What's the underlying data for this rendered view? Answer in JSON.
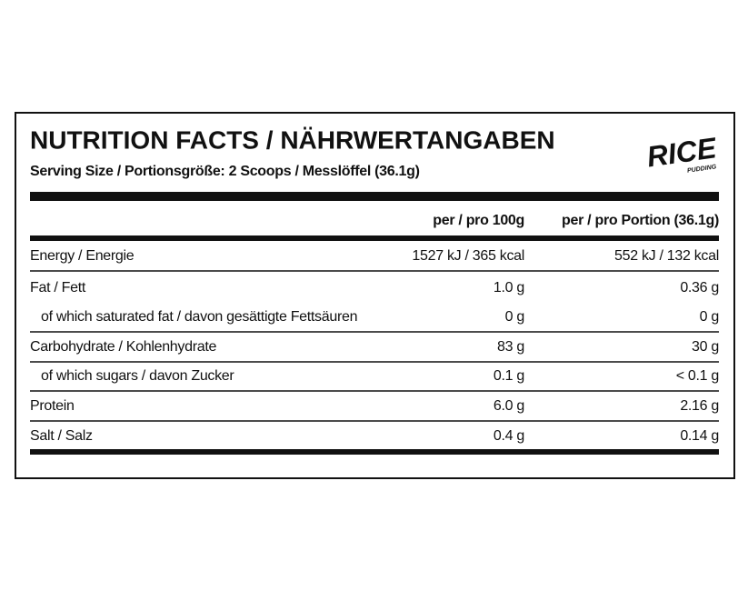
{
  "header": {
    "title": "NUTRITION FACTS / NÄHRWERTANGABEN",
    "serving": "Serving Size / Portionsgröße: 2 Scoops / Messlöffel (36.1g)"
  },
  "logo": {
    "text": "RICE",
    "subtitle": "PUDDING"
  },
  "table": {
    "columns": [
      "per / pro 100g",
      "per / pro Portion (36.1g)"
    ],
    "rows": [
      [
        "Energy / Energie",
        "1527 kJ / 365 kcal",
        "552 kJ / 132 kcal"
      ],
      [
        "Fat / Fett",
        "1.0 g",
        "0.36 g"
      ],
      [
        "of which saturated fat / davon gesättigte Fettsäuren",
        "0 g",
        "0 g"
      ],
      [
        "Carbohydrate / Kohlenhydrate",
        "83 g",
        "30 g"
      ],
      [
        "of which sugars / davon Zucker",
        "0.1 g",
        "< 0.1 g"
      ],
      [
        "Protein",
        "6.0 g",
        "2.16 g"
      ],
      [
        "Salt / Salz",
        "0.4 g",
        "0.14 g"
      ]
    ]
  }
}
